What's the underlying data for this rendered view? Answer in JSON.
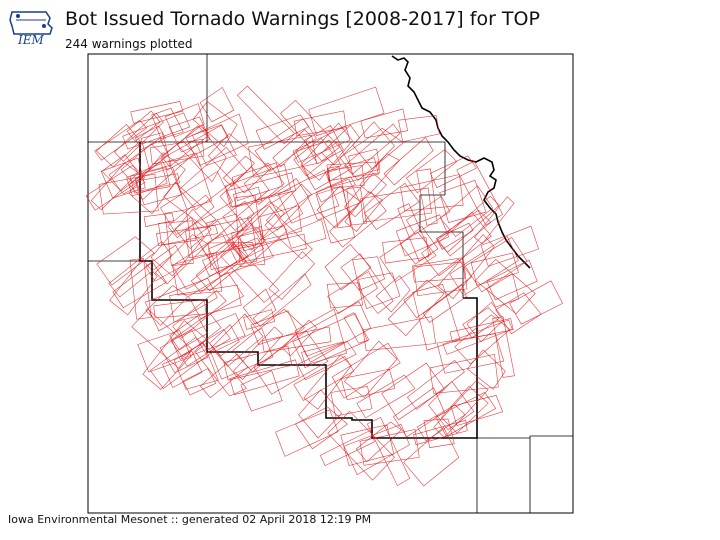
{
  "header": {
    "title": "Bot Issued Tornado Warnings [2008-2017] for TOP",
    "subtitle": "244 warnings plotted",
    "logo_text": "IEM"
  },
  "footer": {
    "credit": "Iowa Environmental Mesonet :: generated 02 April 2018 12:19 PM"
  },
  "map": {
    "warning_count": 244,
    "colors": {
      "warning_outline": "#e31a1c",
      "county_line": "#000000",
      "cwa_border": "#000000",
      "frame": "#000000"
    }
  }
}
